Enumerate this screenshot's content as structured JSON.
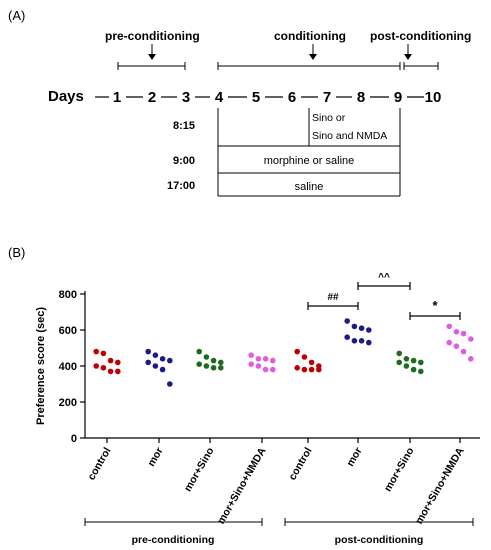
{
  "panel_a": {
    "label": "(A)",
    "pre_label": "pre-conditioning",
    "cond_label": "conditioning",
    "post_label": "post-conditioning",
    "days_label": "Days",
    "days": [
      "1",
      "2",
      "3",
      "4",
      "5",
      "6",
      "7",
      "8",
      "9",
      "10"
    ],
    "times": [
      "8:15",
      "9:00",
      "17:00"
    ],
    "sino_line1": "Sino or",
    "sino_line2": "Sino and NMDA",
    "morphine_text": "morphine or saline",
    "saline_text": "saline"
  },
  "panel_b": {
    "label": "(B)",
    "pre_group_label": "pre-conditioning",
    "post_group_label": "post-conditioning"
  },
  "chart_data": {
    "type": "scatter",
    "ylabel": "Preference score (sec)",
    "ylim": [
      0,
      800
    ],
    "yticks": [
      0,
      200,
      400,
      600,
      800
    ],
    "categories": [
      "control",
      "mor",
      "mor+Sino",
      "mor+Sino+NMDA",
      "control",
      "mor",
      "mor+Sino",
      "mor+Sino+NMDA"
    ],
    "groups": [
      "pre-conditioning",
      "post-conditioning"
    ],
    "colors": [
      "#c00000",
      "#1c1a8a",
      "#1e6b1e",
      "#e05ce0",
      "#c00000",
      "#1c1a8a",
      "#1e6b1e",
      "#e05ce0"
    ],
    "values": [
      [
        480,
        470,
        430,
        420,
        400,
        390,
        370,
        370
      ],
      [
        480,
        460,
        440,
        430,
        420,
        400,
        380,
        300
      ],
      [
        480,
        450,
        430,
        420,
        410,
        400,
        390,
        390
      ],
      [
        460,
        440,
        440,
        430,
        410,
        400,
        380,
        380
      ],
      [
        480,
        450,
        420,
        400,
        390,
        380,
        380,
        380
      ],
      [
        650,
        620,
        610,
        600,
        560,
        540,
        540,
        530
      ],
      [
        470,
        440,
        430,
        420,
        420,
        400,
        380,
        370
      ],
      [
        620,
        590,
        580,
        550,
        530,
        510,
        480,
        440
      ]
    ],
    "annotations": [
      {
        "text": "##",
        "from": "control (post-conditioning)",
        "to": "mor (post-conditioning)"
      },
      {
        "text": "^^",
        "from": "mor (post-conditioning)",
        "to": "mor+Sino (post-conditioning)"
      },
      {
        "text": "*",
        "from": "mor+Sino (post-conditioning)",
        "to": "mor+Sino+NMDA (post-conditioning)"
      }
    ]
  }
}
